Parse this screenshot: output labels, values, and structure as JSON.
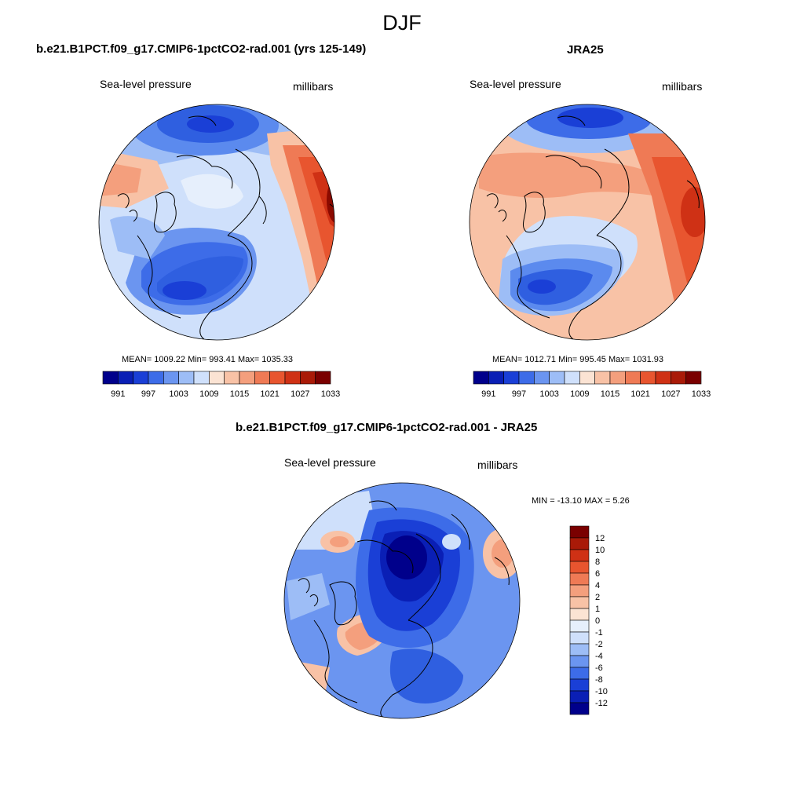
{
  "figure": {
    "title": "DJF"
  },
  "panels": [
    {
      "id": "model",
      "title": "b.e21.B1PCT.f09_g17.CMIP6-1pctCO2-rad.001 (yrs 125-149)",
      "left_label": "Sea-level pressure",
      "right_label": "millibars",
      "stats": "MEAN= 1009.22  Min= 993.41  Max= 1035.33"
    },
    {
      "id": "obs",
      "title": "JRA25",
      "left_label": "Sea-level pressure",
      "right_label": "millibars",
      "stats": "MEAN= 1012.71  Min= 995.45  Max= 1031.93"
    },
    {
      "id": "diff",
      "title": "b.e21.B1PCT.f09_g17.CMIP6-1pctCO2-rad.001 - JRA25",
      "left_label": "Sea-level pressure",
      "right_label": "millibars",
      "stats": "MIN = -13.10 MAX =   5.26"
    }
  ],
  "colorbar_abs": {
    "colors": [
      "#00008b",
      "#0a1fb5",
      "#1a3fd6",
      "#3d6ce8",
      "#6b95f0",
      "#9dbdf6",
      "#cfe0fb",
      "#fbe3d3",
      "#f8c2a6",
      "#f49f7d",
      "#ef7a55",
      "#e8552f",
      "#cf3115",
      "#a91a08",
      "#7a0000"
    ],
    "tick_labels": [
      "991",
      "997",
      "1003",
      "1009",
      "1015",
      "1021",
      "1027",
      "1033"
    ]
  },
  "colorbar_diff": {
    "colors": [
      "#7a0000",
      "#a91a08",
      "#cf3115",
      "#e8552f",
      "#ef7a55",
      "#f49f7d",
      "#f8c2a6",
      "#fbe3d3",
      "#e6effc",
      "#cfe0fb",
      "#9dbdf6",
      "#6b95f0",
      "#3d6ce8",
      "#1a3fd6",
      "#0a1fb5",
      "#00008b"
    ],
    "tick_labels": [
      "12",
      "10",
      "8",
      "6",
      "4",
      "2",
      "1",
      "0",
      "-1",
      "-2",
      "-4",
      "-6",
      "-8",
      "-10",
      "-12"
    ]
  },
  "palette": {
    "deep_blue": "#0a1fb5",
    "blue": "#2f5fe0",
    "mid_blue": "#5b8aee",
    "light_blue": "#9dbdf6",
    "pale_blue": "#cfe0fb",
    "pale_orange": "#f8c2a6",
    "orange": "#ef7a55",
    "red": "#cf3115",
    "dark_red": "#8b0a00"
  }
}
